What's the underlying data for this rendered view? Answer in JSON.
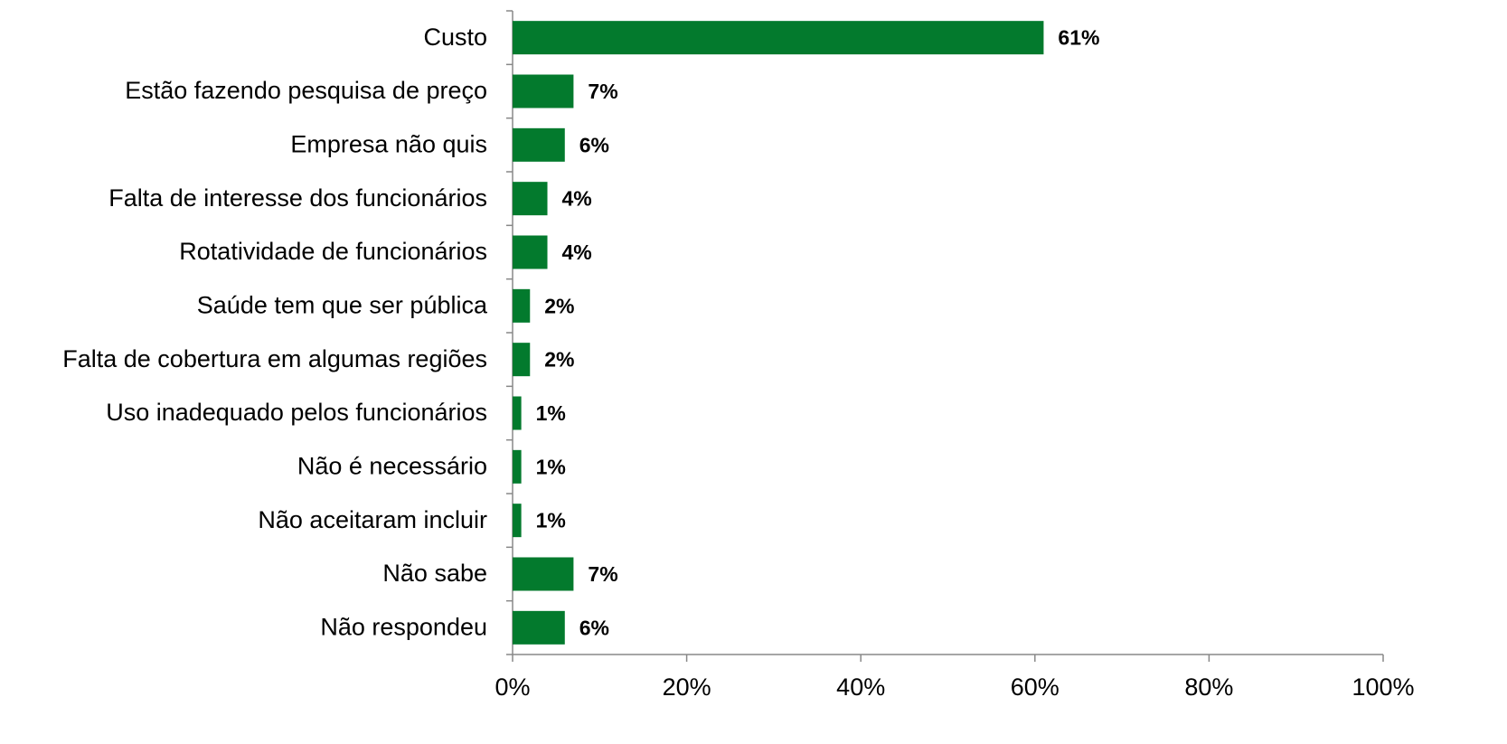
{
  "chart_data": {
    "type": "barh",
    "categories": [
      "Custo",
      "Estão fazendo pesquisa de preço",
      "Empresa não quis",
      "Falta de interesse dos funcionários",
      "Rotatividade de funcionários",
      "Saúde tem que ser pública",
      "Falta de cobertura em algumas regiões",
      "Uso inadequado pelos funcionários",
      "Não é necessário",
      "Não aceitaram incluir",
      "Não sabe",
      "Não respondeu"
    ],
    "values": [
      61,
      7,
      6,
      4,
      4,
      2,
      2,
      1,
      1,
      1,
      7,
      6
    ],
    "value_labels": [
      "61%",
      "7%",
      "6%",
      "4%",
      "4%",
      "2%",
      "2%",
      "1%",
      "1%",
      "1%",
      "7%",
      "6%"
    ],
    "color": "#037a2d",
    "xlim": [
      0,
      100
    ],
    "xticks": [
      {
        "value": 0,
        "label": "0%"
      },
      {
        "value": 20,
        "label": "20%"
      },
      {
        "value": 40,
        "label": "40%"
      },
      {
        "value": 60,
        "label": "60%"
      },
      {
        "value": 80,
        "label": "80%"
      },
      {
        "value": 100,
        "label": "100%"
      }
    ],
    "grid": false
  }
}
